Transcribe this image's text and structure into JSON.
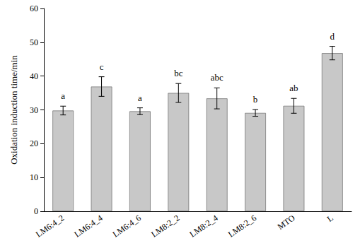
{
  "chart_data": {
    "type": "bar",
    "y_label": "Oxidation induction time/min",
    "categories": [
      "LM6:4_2",
      "LM6:4_4",
      "LM6:4_6",
      "LM8:2_2",
      "LM8:2_4",
      "LM8:2_6",
      "MTO",
      "L"
    ],
    "values": [
      29.8,
      36.9,
      29.6,
      35.0,
      33.4,
      29.1,
      31.2,
      46.8
    ],
    "errors": [
      1.3,
      2.9,
      1.0,
      2.8,
      3.1,
      1.0,
      2.2,
      2.0
    ],
    "letters": [
      "a",
      "c",
      "a",
      "bc",
      "abc",
      "b",
      "ab",
      "d"
    ],
    "color": "#c8c8c8",
    "ylim": [
      0,
      60
    ],
    "yticks": [
      0,
      10,
      20,
      30,
      40,
      50,
      60
    ],
    "grid": false
  }
}
